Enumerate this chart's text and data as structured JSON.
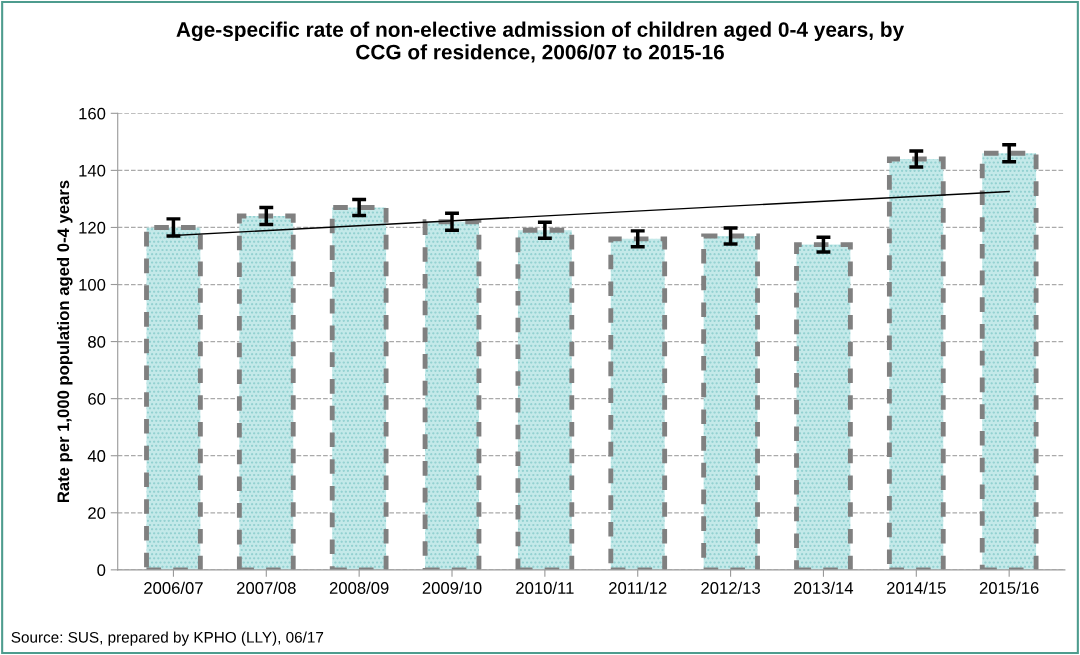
{
  "chart_data": {
    "type": "bar",
    "title": "Age-specific rate of non-elective admission of children aged 0-4 years, by\nCCG of residence, 2006/07 to 2015-16",
    "ylabel": "Rate per 1,000 population aged 0-4 years",
    "categories": [
      "2006/07",
      "2007/08",
      "2008/09",
      "2009/10",
      "2010/11",
      "2011/12",
      "2012/13",
      "2013/14",
      "2014/15",
      "2015/16"
    ],
    "series": [
      {
        "color": "#c4e9e9",
        "values": [
          120,
          124,
          127,
          122,
          119,
          116,
          117,
          114,
          144,
          146
        ],
        "errors": [
          3,
          3,
          2.8,
          3,
          2.8,
          2.8,
          2.8,
          2.6,
          2.8,
          3
        ]
      },
      {
        "type": "line",
        "color": "#000000",
        "x": [
          "2006/07",
          "2015/16"
        ],
        "values": [
          117.2,
          132.6
        ]
      }
    ],
    "ylim": [
      0,
      160
    ],
    "yticks": [
      0,
      20,
      40,
      60,
      80,
      100,
      120,
      140,
      160
    ],
    "grid": "y",
    "annotations": [
      "Source: SUS, prepared by KPHO (LLY), 06/17"
    ]
  }
}
